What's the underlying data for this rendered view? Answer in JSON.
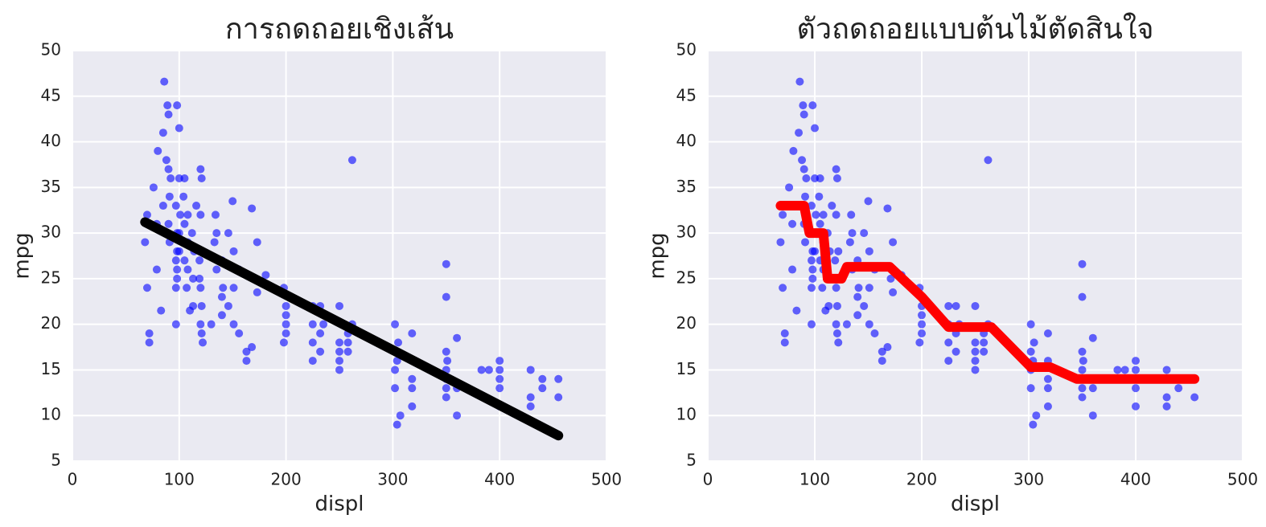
{
  "chart_data": [
    {
      "type": "scatter",
      "title": "การถดถอยเชิงเส้น",
      "xlabel": "displ",
      "ylabel": "mpg",
      "xlim": [
        0,
        500
      ],
      "ylim": [
        5,
        50
      ],
      "xticks": [
        0,
        100,
        200,
        300,
        400,
        500
      ],
      "yticks": [
        5,
        10,
        15,
        20,
        25,
        30,
        35,
        40,
        45,
        50
      ],
      "grid": true,
      "series": [
        {
          "type": "scatter",
          "color": "#0000ff",
          "x": [
            68,
            70,
            70,
            72,
            72,
            76,
            79,
            79,
            80,
            83,
            85,
            85,
            86,
            88,
            89,
            90,
            90,
            90,
            91,
            91,
            92,
            97,
            97,
            97,
            97,
            98,
            98,
            98,
            98,
            98,
            100,
            100,
            100,
            100,
            101,
            104,
            105,
            105,
            105,
            107,
            108,
            108,
            108,
            110,
            112,
            113,
            113,
            114,
            116,
            119,
            119,
            120,
            120,
            120,
            120,
            121,
            121,
            121,
            122,
            122,
            130,
            133,
            134,
            135,
            135,
            140,
            140,
            140,
            141,
            146,
            146,
            150,
            151,
            151,
            151,
            156,
            156,
            163,
            163,
            168,
            168,
            171,
            173,
            173,
            181,
            198,
            198,
            200,
            200,
            200,
            200,
            225,
            225,
            225,
            225,
            232,
            232,
            232,
            235,
            250,
            250,
            250,
            250,
            250,
            258,
            258,
            258,
            262,
            262,
            302,
            302,
            302,
            302,
            304,
            304,
            307,
            305,
            318,
            318,
            318,
            318,
            318,
            350,
            350,
            350,
            350,
            350,
            350,
            350,
            351,
            360,
            360,
            360,
            383,
            390,
            400,
            400,
            400,
            400,
            400,
            429,
            429,
            429,
            440,
            440,
            455,
            455
          ],
          "values": [
            29,
            32,
            24,
            19,
            18,
            35,
            31,
            26,
            39,
            21.5,
            33,
            41,
            46.6,
            38,
            44,
            43,
            37,
            31,
            34,
            29,
            36,
            33,
            27,
            24,
            20,
            44,
            30,
            28,
            26,
            25,
            41.5,
            36,
            30,
            28,
            32,
            34,
            36,
            31,
            27,
            24,
            32,
            29,
            26,
            21.5,
            30,
            25,
            22,
            28,
            33,
            27,
            25,
            37,
            32,
            24,
            20,
            36,
            22,
            19,
            18,
            28,
            20,
            29,
            32,
            26,
            30,
            23,
            27,
            21,
            24,
            30,
            22,
            33.5,
            28,
            24,
            20,
            26,
            19,
            17,
            16,
            32.7,
            17.5,
            25,
            29,
            23.5,
            25.4,
            24,
            18,
            22,
            21,
            20,
            19,
            20,
            18,
            16,
            22,
            22,
            19,
            17,
            20,
            18,
            17,
            16,
            15,
            22,
            19,
            18,
            17,
            38,
            20,
            20,
            17,
            15,
            13,
            16,
            9,
            10,
            18,
            16,
            14,
            13,
            11,
            19,
            26.6,
            23,
            17,
            15,
            14,
            13,
            12,
            16,
            18.5,
            10,
            13,
            15,
            15,
            16,
            14,
            13,
            11,
            15,
            15,
            12,
            11,
            14,
            13,
            14,
            12
          ]
        },
        {
          "type": "line",
          "color": "#000000",
          "x": [
            68,
            455
          ],
          "values": [
            31.2,
            7.8
          ]
        }
      ]
    },
    {
      "type": "scatter",
      "title": "ตัวถดถอยแบบต้นไม้ตัดสินใจ",
      "xlabel": "displ",
      "ylabel": "mpg",
      "xlim": [
        0,
        500
      ],
      "ylim": [
        5,
        50
      ],
      "xticks": [
        0,
        100,
        200,
        300,
        400,
        500
      ],
      "yticks": [
        5,
        10,
        15,
        20,
        25,
        30,
        35,
        40,
        45,
        50
      ],
      "grid": true,
      "series": [
        {
          "type": "scatter",
          "color": "#0000ff",
          "x": [
            68,
            70,
            70,
            72,
            72,
            76,
            79,
            79,
            80,
            83,
            85,
            85,
            86,
            88,
            89,
            90,
            90,
            90,
            91,
            91,
            92,
            97,
            97,
            97,
            97,
            98,
            98,
            98,
            98,
            98,
            100,
            100,
            100,
            100,
            101,
            104,
            105,
            105,
            105,
            107,
            108,
            108,
            108,
            110,
            112,
            113,
            113,
            114,
            116,
            119,
            119,
            120,
            120,
            120,
            120,
            121,
            121,
            121,
            122,
            122,
            130,
            133,
            134,
            135,
            135,
            140,
            140,
            140,
            141,
            146,
            146,
            150,
            151,
            151,
            151,
            156,
            156,
            163,
            163,
            168,
            168,
            171,
            173,
            173,
            181,
            198,
            198,
            200,
            200,
            200,
            200,
            225,
            225,
            225,
            225,
            232,
            232,
            232,
            235,
            250,
            250,
            250,
            250,
            250,
            258,
            258,
            258,
            262,
            262,
            302,
            302,
            302,
            302,
            304,
            304,
            307,
            305,
            318,
            318,
            318,
            318,
            318,
            350,
            350,
            350,
            350,
            350,
            350,
            350,
            351,
            360,
            360,
            360,
            383,
            390,
            400,
            400,
            400,
            400,
            400,
            429,
            429,
            429,
            440,
            440,
            455,
            455
          ],
          "values": [
            29,
            32,
            24,
            19,
            18,
            35,
            31,
            26,
            39,
            21.5,
            33,
            41,
            46.6,
            38,
            44,
            43,
            37,
            31,
            34,
            29,
            36,
            33,
            27,
            24,
            20,
            44,
            30,
            28,
            26,
            25,
            41.5,
            36,
            30,
            28,
            32,
            34,
            36,
            31,
            27,
            24,
            32,
            29,
            26,
            21.5,
            30,
            25,
            22,
            28,
            33,
            27,
            25,
            37,
            32,
            24,
            20,
            36,
            22,
            19,
            18,
            28,
            20,
            29,
            32,
            26,
            30,
            23,
            27,
            21,
            24,
            30,
            22,
            33.5,
            28,
            24,
            20,
            26,
            19,
            17,
            16,
            32.7,
            17.5,
            25,
            29,
            23.5,
            25.4,
            24,
            18,
            22,
            21,
            20,
            19,
            20,
            18,
            16,
            22,
            22,
            19,
            17,
            20,
            18,
            17,
            16,
            15,
            22,
            19,
            18,
            17,
            38,
            20,
            20,
            17,
            15,
            13,
            16,
            9,
            10,
            18,
            16,
            14,
            13,
            11,
            19,
            26.6,
            23,
            17,
            15,
            14,
            13,
            12,
            16,
            18.5,
            10,
            13,
            15,
            15,
            16,
            14,
            13,
            11,
            15,
            15,
            12,
            11,
            14,
            13,
            14,
            12
          ]
        },
        {
          "type": "line",
          "color": "#ff0000",
          "x": [
            68,
            90,
            95,
            108,
            112,
            125,
            130,
            170,
            200,
            225,
            265,
            302,
            320,
            345,
            455
          ],
          "values": [
            33,
            33,
            30,
            30,
            25,
            25,
            26.3,
            26.3,
            23,
            19.7,
            19.7,
            15.3,
            15.3,
            14,
            14
          ]
        }
      ]
    }
  ]
}
